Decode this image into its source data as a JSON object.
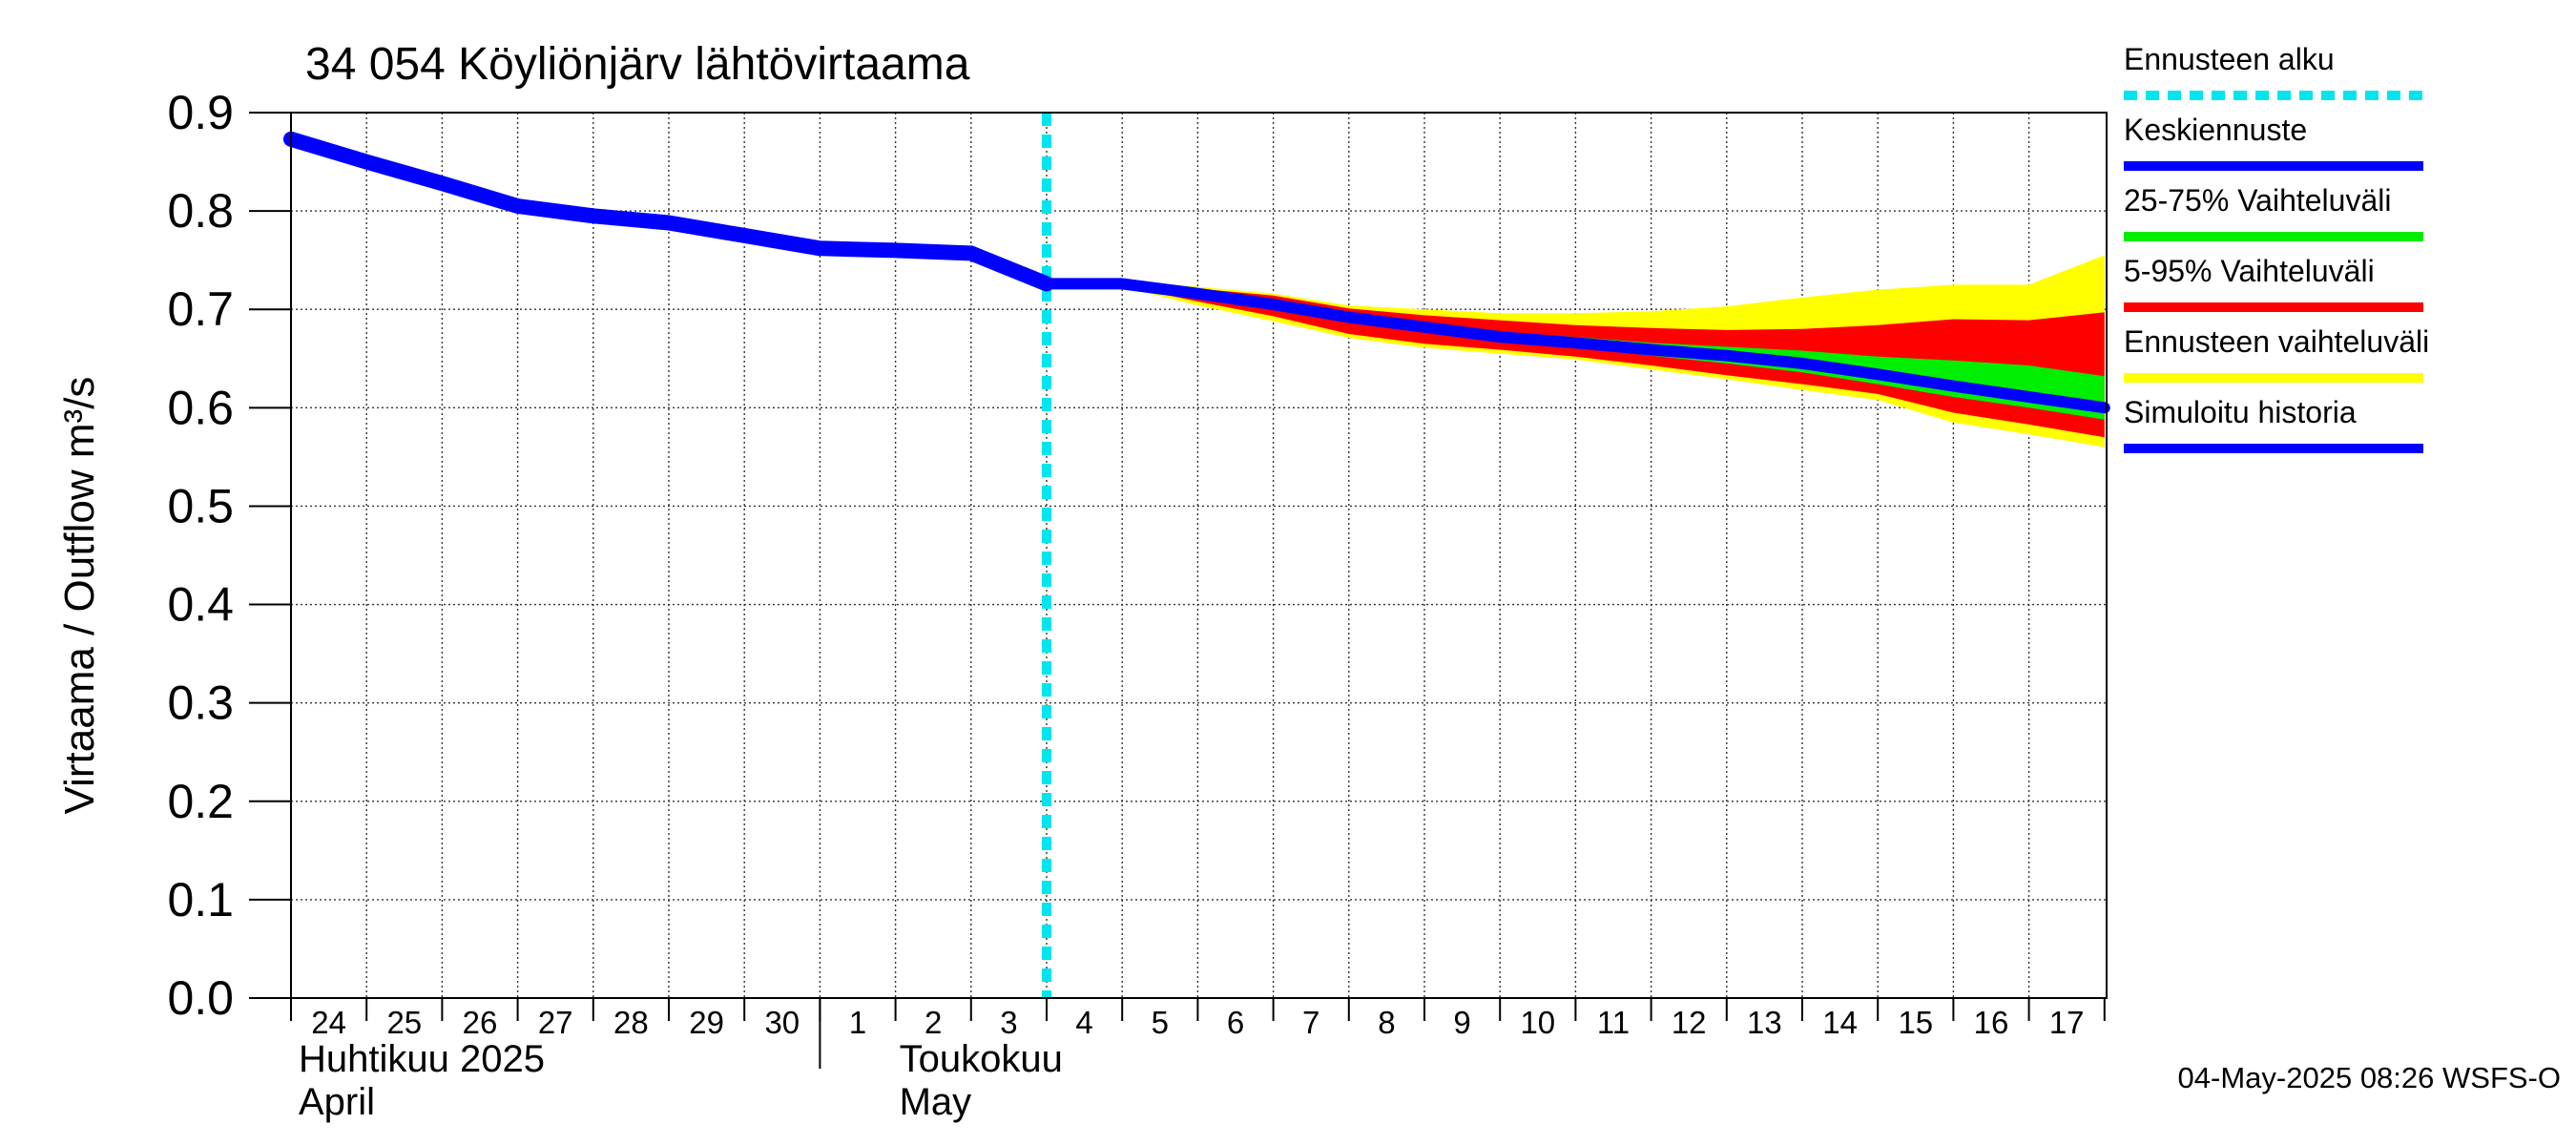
{
  "chart_data": {
    "type": "area",
    "title": "34 054 Köyliönjärv lähtövirtaama",
    "ylabel": "Virtaama / Outflow    m³/s",
    "ylim": [
      0.0,
      0.9
    ],
    "yticks": [
      "0.0",
      "0.1",
      "0.2",
      "0.3",
      "0.4",
      "0.5",
      "0.6",
      "0.7",
      "0.8",
      "0.9"
    ],
    "xlim": [
      "2025-04-24",
      "2025-05-18"
    ],
    "x_day_labels": [
      "24",
      "25",
      "26",
      "27",
      "28",
      "29",
      "30",
      "1",
      "2",
      "3",
      "4",
      "5",
      "6",
      "7",
      "8",
      "9",
      "10",
      "11",
      "12",
      "13",
      "14",
      "15",
      "16",
      "17"
    ],
    "month_labels": [
      {
        "name_fi": "Huhtikuu  2025",
        "name_en": "April"
      },
      {
        "name_fi": "Toukokuu",
        "name_en": "May"
      }
    ],
    "grid": true,
    "forecast_start": "2025-05-04",
    "legend": [
      {
        "label": "Ennusteen alku",
        "color": "#00e5ee",
        "style": "dashed"
      },
      {
        "label": "Keskiennuste",
        "color": "#0000ff",
        "style": "line"
      },
      {
        "label": "25-75% Vaihteluväli",
        "color": "#00ee00",
        "style": "band"
      },
      {
        "label": "5-95% Vaihteluväli",
        "color": "#ff0000",
        "style": "band"
      },
      {
        "label": "Ennusteen vaihteluväli",
        "color": "#ffff00",
        "style": "band"
      },
      {
        "label": "Simuloitu historia",
        "color": "#0000ff",
        "style": "line"
      }
    ],
    "series": [
      {
        "name": "Simuloitu historia",
        "x": [
          "2025-04-24",
          "2025-04-25",
          "2025-04-26",
          "2025-04-27",
          "2025-04-28",
          "2025-04-29",
          "2025-04-30",
          "2025-05-01",
          "2025-05-02",
          "2025-05-03",
          "2025-05-04"
        ],
        "y": [
          0.873,
          0.85,
          0.828,
          0.805,
          0.795,
          0.788,
          0.775,
          0.762,
          0.76,
          0.757,
          0.726
        ]
      },
      {
        "name": "Keskiennuste",
        "x": [
          "2025-05-04",
          "2025-05-05",
          "2025-05-06",
          "2025-05-07",
          "2025-05-08",
          "2025-05-09",
          "2025-05-10",
          "2025-05-11",
          "2025-05-12",
          "2025-05-13",
          "2025-05-14",
          "2025-05-15",
          "2025-05-16",
          "2025-05-17",
          "2025-05-18"
        ],
        "y": [
          0.726,
          0.726,
          0.716,
          0.705,
          0.692,
          0.682,
          0.672,
          0.666,
          0.659,
          0.653,
          0.645,
          0.634,
          0.622,
          0.611,
          0.6
        ]
      }
    ],
    "bands": [
      {
        "name": "Ennusteen vaihteluväli",
        "x": [
          "2025-05-04",
          "2025-05-05",
          "2025-05-06",
          "2025-05-07",
          "2025-05-08",
          "2025-05-09",
          "2025-05-10",
          "2025-05-11",
          "2025-05-12",
          "2025-05-13",
          "2025-05-14",
          "2025-05-15",
          "2025-05-16",
          "2025-05-17",
          "2025-05-18"
        ],
        "upper": [
          0.726,
          0.729,
          0.723,
          0.716,
          0.704,
          0.7,
          0.696,
          0.696,
          0.698,
          0.703,
          0.712,
          0.72,
          0.725,
          0.725,
          0.755
        ],
        "lower": [
          0.726,
          0.723,
          0.704,
          0.688,
          0.671,
          0.661,
          0.655,
          0.649,
          0.639,
          0.629,
          0.618,
          0.608,
          0.585,
          0.573,
          0.56
        ]
      },
      {
        "name": "5-95% Vaihteluväli",
        "x": [
          "2025-05-04",
          "2025-05-05",
          "2025-05-06",
          "2025-05-07",
          "2025-05-08",
          "2025-05-09",
          "2025-05-10",
          "2025-05-11",
          "2025-05-12",
          "2025-05-13",
          "2025-05-14",
          "2025-05-15",
          "2025-05-16",
          "2025-05-17",
          "2025-05-18"
        ],
        "upper": [
          0.726,
          0.728,
          0.721,
          0.714,
          0.701,
          0.694,
          0.689,
          0.684,
          0.681,
          0.679,
          0.68,
          0.684,
          0.69,
          0.689,
          0.697
        ],
        "lower": [
          0.726,
          0.724,
          0.708,
          0.693,
          0.675,
          0.665,
          0.659,
          0.652,
          0.643,
          0.633,
          0.624,
          0.614,
          0.595,
          0.583,
          0.57
        ]
      },
      {
        "name": "25-75% Vaihteluväli",
        "x": [
          "2025-05-04",
          "2025-05-05",
          "2025-05-06",
          "2025-05-07",
          "2025-05-08",
          "2025-05-09",
          "2025-05-10",
          "2025-05-11",
          "2025-05-12",
          "2025-05-13",
          "2025-05-14",
          "2025-05-15",
          "2025-05-16",
          "2025-05-17",
          "2025-05-18"
        ],
        "upper": [
          0.726,
          0.727,
          0.718,
          0.708,
          0.695,
          0.686,
          0.677,
          0.672,
          0.666,
          0.662,
          0.658,
          0.652,
          0.648,
          0.643,
          0.632
        ],
        "lower": [
          0.726,
          0.725,
          0.714,
          0.702,
          0.688,
          0.678,
          0.667,
          0.661,
          0.653,
          0.645,
          0.636,
          0.624,
          0.611,
          0.6,
          0.588
        ]
      }
    ]
  },
  "footer": {
    "timestamp": "04-May-2025 08:26 WSFS-O"
  }
}
